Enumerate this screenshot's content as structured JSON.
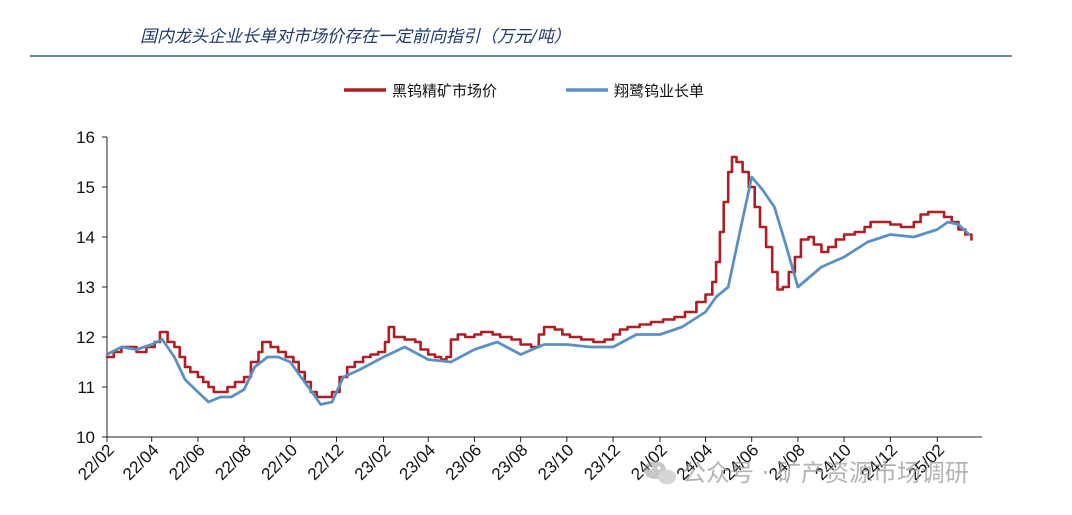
{
  "watermark": {
    "text": "公众号 · 矿产资源市场调研",
    "icon": "wechat-icon"
  },
  "colors": {
    "market": "#b01e23",
    "long_term": "#5b90c4",
    "title": "#1f3a6b",
    "header_rule": "#1f3a6b"
  },
  "chart_data": {
    "type": "line",
    "title": "国内龙头企业长单对市场价存在一定前向指引（万元/吨）",
    "xlabel": "",
    "ylabel": "",
    "ylim": [
      10,
      16
    ],
    "yticks": [
      10,
      11,
      12,
      13,
      14,
      15,
      16
    ],
    "xlim": [
      "2022-02",
      "2025-04"
    ],
    "xticks": [
      "22/02",
      "22/04",
      "22/06",
      "22/08",
      "22/10",
      "22/12",
      "23/02",
      "23/04",
      "23/06",
      "23/08",
      "23/10",
      "23/12",
      "24/02",
      "24/04",
      "24/06",
      "24/08",
      "24/10",
      "24/12",
      "25/02"
    ],
    "grid": false,
    "legend_position": "top-center",
    "series": [
      {
        "name": "黑钨精矿市场价",
        "color": "#b01e23",
        "step": true,
        "points": [
          [
            "2022-02-01",
            11.6
          ],
          [
            "2022-02-10",
            11.7
          ],
          [
            "2022-02-20",
            11.8
          ],
          [
            "2022-03-08",
            11.8
          ],
          [
            "2022-03-12",
            11.7
          ],
          [
            "2022-03-25",
            11.8
          ],
          [
            "2022-04-05",
            11.9
          ],
          [
            "2022-04-12",
            12.1
          ],
          [
            "2022-04-22",
            11.9
          ],
          [
            "2022-05-01",
            11.8
          ],
          [
            "2022-05-08",
            11.6
          ],
          [
            "2022-05-15",
            11.4
          ],
          [
            "2022-05-22",
            11.3
          ],
          [
            "2022-06-01",
            11.2
          ],
          [
            "2022-06-08",
            11.1
          ],
          [
            "2022-06-15",
            11.0
          ],
          [
            "2022-06-22",
            10.9
          ],
          [
            "2022-07-01",
            10.9
          ],
          [
            "2022-07-10",
            11.0
          ],
          [
            "2022-07-20",
            11.1
          ],
          [
            "2022-08-01",
            11.2
          ],
          [
            "2022-08-10",
            11.5
          ],
          [
            "2022-08-20",
            11.7
          ],
          [
            "2022-08-25",
            11.9
          ],
          [
            "2022-09-05",
            11.8
          ],
          [
            "2022-09-15",
            11.7
          ],
          [
            "2022-09-25",
            11.6
          ],
          [
            "2022-10-05",
            11.5
          ],
          [
            "2022-10-12",
            11.3
          ],
          [
            "2022-10-20",
            11.1
          ],
          [
            "2022-10-28",
            10.9
          ],
          [
            "2022-11-05",
            10.8
          ],
          [
            "2022-11-15",
            10.8
          ],
          [
            "2022-11-25",
            10.9
          ],
          [
            "2022-12-05",
            11.2
          ],
          [
            "2022-12-15",
            11.4
          ],
          [
            "2022-12-25",
            11.5
          ],
          [
            "2023-01-05",
            11.6
          ],
          [
            "2023-01-15",
            11.65
          ],
          [
            "2023-01-25",
            11.7
          ],
          [
            "2023-02-03",
            11.9
          ],
          [
            "2023-02-08",
            12.2
          ],
          [
            "2023-02-15",
            12.0
          ],
          [
            "2023-03-01",
            11.95
          ],
          [
            "2023-03-15",
            11.9
          ],
          [
            "2023-03-22",
            11.75
          ],
          [
            "2023-04-01",
            11.65
          ],
          [
            "2023-04-10",
            11.6
          ],
          [
            "2023-04-18",
            11.55
          ],
          [
            "2023-04-25",
            11.6
          ],
          [
            "2023-05-01",
            11.95
          ],
          [
            "2023-05-10",
            12.05
          ],
          [
            "2023-05-20",
            12.0
          ],
          [
            "2023-06-01",
            12.05
          ],
          [
            "2023-06-10",
            12.1
          ],
          [
            "2023-06-25",
            12.05
          ],
          [
            "2023-07-05",
            12.0
          ],
          [
            "2023-07-20",
            11.95
          ],
          [
            "2023-08-01",
            11.85
          ],
          [
            "2023-08-15",
            11.8
          ],
          [
            "2023-08-25",
            12.05
          ],
          [
            "2023-09-01",
            12.2
          ],
          [
            "2023-09-15",
            12.15
          ],
          [
            "2023-09-25",
            12.05
          ],
          [
            "2023-10-05",
            12.0
          ],
          [
            "2023-10-20",
            11.95
          ],
          [
            "2023-11-05",
            11.9
          ],
          [
            "2023-11-20",
            11.95
          ],
          [
            "2023-12-01",
            12.05
          ],
          [
            "2023-12-10",
            12.15
          ],
          [
            "2023-12-20",
            12.2
          ],
          [
            "2024-01-05",
            12.25
          ],
          [
            "2024-01-20",
            12.3
          ],
          [
            "2024-02-05",
            12.35
          ],
          [
            "2024-02-20",
            12.4
          ],
          [
            "2024-03-05",
            12.5
          ],
          [
            "2024-03-20",
            12.7
          ],
          [
            "2024-04-01",
            12.85
          ],
          [
            "2024-04-10",
            13.1
          ],
          [
            "2024-04-15",
            13.5
          ],
          [
            "2024-04-20",
            14.1
          ],
          [
            "2024-04-25",
            14.7
          ],
          [
            "2024-05-01",
            15.3
          ],
          [
            "2024-05-06",
            15.6
          ],
          [
            "2024-05-12",
            15.5
          ],
          [
            "2024-05-20",
            15.3
          ],
          [
            "2024-05-28",
            15.0
          ],
          [
            "2024-06-05",
            14.6
          ],
          [
            "2024-06-12",
            14.2
          ],
          [
            "2024-06-20",
            13.8
          ],
          [
            "2024-06-28",
            13.3
          ],
          [
            "2024-07-05",
            12.95
          ],
          [
            "2024-07-12",
            13.0
          ],
          [
            "2024-07-20",
            13.3
          ],
          [
            "2024-07-28",
            13.6
          ],
          [
            "2024-08-05",
            13.95
          ],
          [
            "2024-08-15",
            14.0
          ],
          [
            "2024-08-22",
            13.85
          ],
          [
            "2024-09-01",
            13.7
          ],
          [
            "2024-09-10",
            13.8
          ],
          [
            "2024-09-20",
            13.95
          ],
          [
            "2024-10-01",
            14.05
          ],
          [
            "2024-10-15",
            14.1
          ],
          [
            "2024-10-28",
            14.2
          ],
          [
            "2024-11-05",
            14.3
          ],
          [
            "2024-11-20",
            14.3
          ],
          [
            "2024-12-01",
            14.25
          ],
          [
            "2024-12-15",
            14.2
          ],
          [
            "2025-01-01",
            14.3
          ],
          [
            "2025-01-10",
            14.45
          ],
          [
            "2025-01-20",
            14.5
          ],
          [
            "2025-02-01",
            14.5
          ],
          [
            "2025-02-10",
            14.4
          ],
          [
            "2025-02-20",
            14.3
          ],
          [
            "2025-03-01",
            14.15
          ],
          [
            "2025-03-10",
            14.05
          ],
          [
            "2025-03-18",
            13.95
          ]
        ]
      },
      {
        "name": "翔鹭钨业长单",
        "color": "#5b90c4",
        "step": false,
        "points": [
          [
            "2022-02-01",
            11.65
          ],
          [
            "2022-02-20",
            11.8
          ],
          [
            "2022-03-12",
            11.75
          ],
          [
            "2022-04-01",
            11.85
          ],
          [
            "2022-04-15",
            11.95
          ],
          [
            "2022-05-01",
            11.6
          ],
          [
            "2022-05-15",
            11.15
          ],
          [
            "2022-06-01",
            10.9
          ],
          [
            "2022-06-15",
            10.7
          ],
          [
            "2022-07-01",
            10.8
          ],
          [
            "2022-07-15",
            10.8
          ],
          [
            "2022-08-01",
            10.95
          ],
          [
            "2022-08-15",
            11.4
          ],
          [
            "2022-09-01",
            11.6
          ],
          [
            "2022-09-15",
            11.6
          ],
          [
            "2022-10-01",
            11.5
          ],
          [
            "2022-10-15",
            11.2
          ],
          [
            "2022-11-01",
            10.85
          ],
          [
            "2022-11-10",
            10.65
          ],
          [
            "2022-11-25",
            10.7
          ],
          [
            "2022-12-10",
            11.2
          ],
          [
            "2023-01-01",
            11.35
          ],
          [
            "2023-02-01",
            11.6
          ],
          [
            "2023-03-01",
            11.8
          ],
          [
            "2023-04-01",
            11.55
          ],
          [
            "2023-05-01",
            11.5
          ],
          [
            "2023-06-01",
            11.75
          ],
          [
            "2023-07-01",
            11.9
          ],
          [
            "2023-08-01",
            11.65
          ],
          [
            "2023-09-01",
            11.85
          ],
          [
            "2023-10-01",
            11.85
          ],
          [
            "2023-11-01",
            11.8
          ],
          [
            "2023-12-01",
            11.8
          ],
          [
            "2024-01-01",
            12.05
          ],
          [
            "2024-02-01",
            12.05
          ],
          [
            "2024-03-01",
            12.2
          ],
          [
            "2024-04-01",
            12.5
          ],
          [
            "2024-04-15",
            12.8
          ],
          [
            "2024-05-01",
            13.0
          ],
          [
            "2024-05-15",
            14.0
          ],
          [
            "2024-06-01",
            15.2
          ],
          [
            "2024-06-15",
            14.95
          ],
          [
            "2024-07-01",
            14.6
          ],
          [
            "2024-07-15",
            13.9
          ],
          [
            "2024-08-01",
            13.0
          ],
          [
            "2024-09-01",
            13.4
          ],
          [
            "2024-10-01",
            13.6
          ],
          [
            "2024-11-01",
            13.9
          ],
          [
            "2024-12-01",
            14.05
          ],
          [
            "2025-01-01",
            14.0
          ],
          [
            "2025-02-01",
            14.15
          ],
          [
            "2025-02-15",
            14.3
          ],
          [
            "2025-03-01",
            14.25
          ],
          [
            "2025-03-15",
            14.05
          ]
        ]
      }
    ]
  }
}
